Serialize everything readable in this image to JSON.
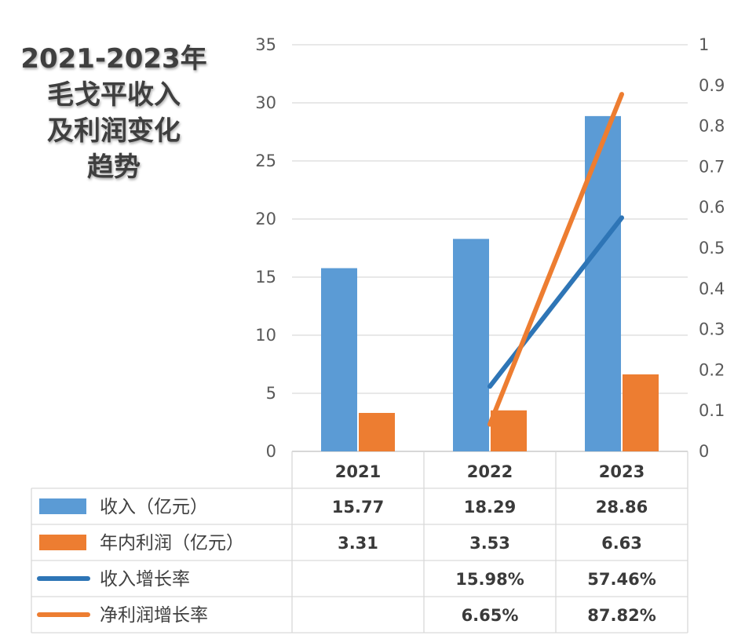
{
  "title": "2021-2023年\n毛戈平收入\n及利润变化\n趋势",
  "chart_data": {
    "type": "bar",
    "categories": [
      "2021",
      "2022",
      "2023"
    ],
    "ylim": [
      0,
      35
    ],
    "y_ticks": [
      0,
      5,
      10,
      15,
      20,
      25,
      30,
      35
    ],
    "y2lim": [
      0,
      1
    ],
    "y2_ticks": [
      "0",
      "0.1",
      "0.2",
      "0.3",
      "0.4",
      "0.5",
      "0.6",
      "0.7",
      "0.8",
      "0.9",
      "1"
    ],
    "grid": true,
    "series": [
      {
        "name": "收入（亿元）",
        "kind": "bar",
        "axis": "left",
        "color": "#5b9bd5",
        "values": [
          15.77,
          18.29,
          28.86
        ],
        "labels": [
          "15.77",
          "18.29",
          "28.86"
        ]
      },
      {
        "name": "年内利润（亿元）",
        "kind": "bar",
        "axis": "left",
        "color": "#ed7d31",
        "values": [
          3.31,
          3.53,
          6.63
        ],
        "labels": [
          "3.31",
          "3.53",
          "6.63"
        ]
      },
      {
        "name": "收入增长率",
        "kind": "line",
        "axis": "right",
        "color": "#2e75b6",
        "values": [
          null,
          0.1598,
          0.5746
        ],
        "labels": [
          "",
          "15.98%",
          "57.46%"
        ]
      },
      {
        "name": "净利润增长率",
        "kind": "line",
        "axis": "right",
        "color": "#ed7d31",
        "values": [
          null,
          0.0665,
          0.8782
        ],
        "labels": [
          "",
          "6.65%",
          "87.82%"
        ]
      }
    ]
  }
}
